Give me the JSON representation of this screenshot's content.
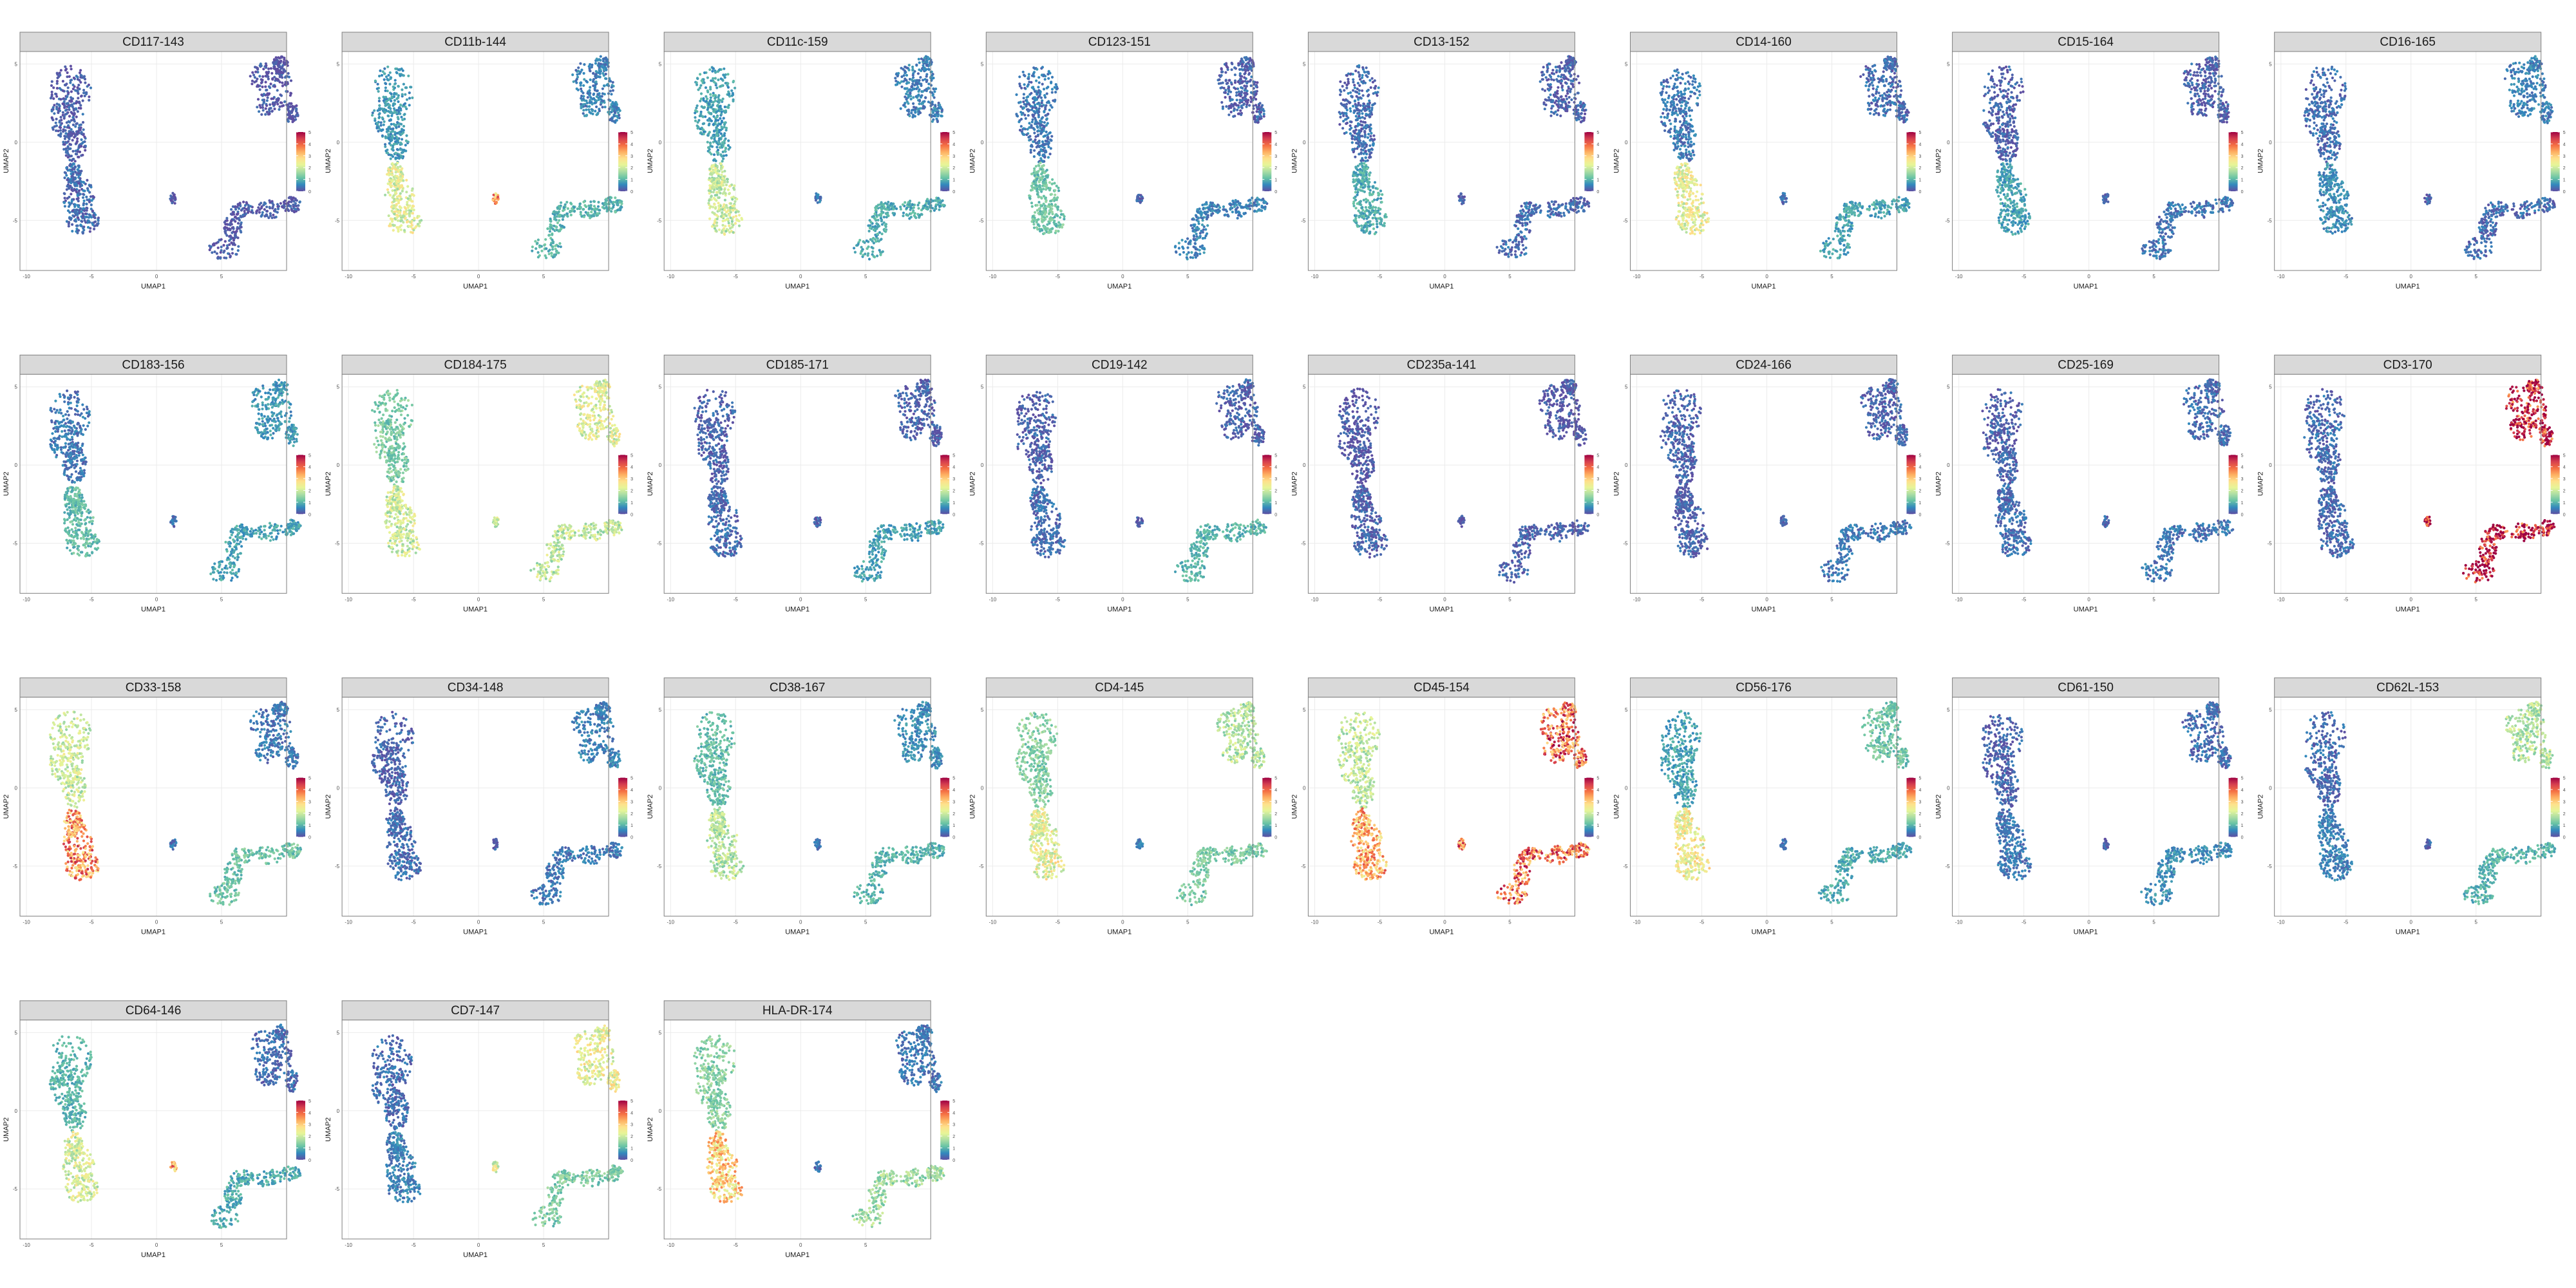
{
  "chart_data": {
    "type": "scatter",
    "title": "",
    "facet_grid": {
      "rows": 4,
      "cols": 8
    },
    "xlabel": "UMAP1",
    "ylabel": "UMAP2",
    "x_ticks": [
      -10,
      -5,
      0,
      5
    ],
    "y_ticks": [
      5,
      0,
      -5
    ],
    "xlim": [
      -10.5,
      10
    ],
    "ylim": [
      -8.2,
      5.8
    ],
    "grid": true,
    "legend_position": "right",
    "color_scale": {
      "name": "Spectral",
      "ticks": [
        0,
        1,
        2,
        3,
        4,
        5
      ],
      "colors": [
        "#5e4fa2",
        "#3288bd",
        "#66c2a5",
        "#abdda4",
        "#e6f598",
        "#fee08b",
        "#fdae61",
        "#f46d43",
        "#d53e4f",
        "#9e0142"
      ]
    },
    "clusters": {
      "myeloid_top": [
        -6.5,
        3.2
      ],
      "myeloid_bottom": [
        -6.0,
        -4.0
      ],
      "nk_cluster": [
        8.2,
        3.6
      ],
      "t_cluster": [
        7.0,
        -4.6
      ],
      "b_island": [
        1.3,
        -3.5
      ]
    },
    "panels": [
      {
        "marker": "CD117-143",
        "expression": {
          "myeloid_top": 0.15,
          "myeloid_bottom": 0.3,
          "nk_cluster": 0.1,
          "t_cluster": 0.1,
          "b_island": 0.1
        }
      },
      {
        "marker": "CD11b-144",
        "expression": {
          "myeloid_top": 0.7,
          "myeloid_bottom": 2.2,
          "nk_cluster": 0.5,
          "t_cluster": 1.0,
          "b_island": 3.4
        }
      },
      {
        "marker": "CD11c-159",
        "expression": {
          "myeloid_top": 0.8,
          "myeloid_bottom": 2.0,
          "nk_cluster": 0.5,
          "t_cluster": 0.9,
          "b_island": 0.4
        }
      },
      {
        "marker": "CD123-151",
        "expression": {
          "myeloid_top": 0.4,
          "myeloid_bottom": 1.2,
          "nk_cluster": 0.2,
          "t_cluster": 0.5,
          "b_island": 0.2
        }
      },
      {
        "marker": "CD13-152",
        "expression": {
          "myeloid_top": 0.3,
          "myeloid_bottom": 0.9,
          "nk_cluster": 0.2,
          "t_cluster": 0.3,
          "b_island": 0.2
        }
      },
      {
        "marker": "CD14-160",
        "expression": {
          "myeloid_top": 0.4,
          "myeloid_bottom": 2.3,
          "nk_cluster": 0.3,
          "t_cluster": 0.8,
          "b_island": 0.3
        }
      },
      {
        "marker": "CD15-164",
        "expression": {
          "myeloid_top": 0.2,
          "myeloid_bottom": 0.8,
          "nk_cluster": 0.2,
          "t_cluster": 0.4,
          "b_island": 0.2
        }
      },
      {
        "marker": "CD16-165",
        "expression": {
          "myeloid_top": 0.3,
          "myeloid_bottom": 0.6,
          "nk_cluster": 0.5,
          "t_cluster": 0.3,
          "b_island": 0.2
        }
      },
      {
        "marker": "CD183-156",
        "expression": {
          "myeloid_top": 0.4,
          "myeloid_bottom": 1.1,
          "nk_cluster": 0.7,
          "t_cluster": 0.8,
          "b_island": 0.3
        }
      },
      {
        "marker": "CD184-175",
        "expression": {
          "myeloid_top": 1.3,
          "myeloid_bottom": 2.0,
          "nk_cluster": 2.2,
          "t_cluster": 1.9,
          "b_island": 2.0
        }
      },
      {
        "marker": "CD185-171",
        "expression": {
          "myeloid_top": 0.2,
          "myeloid_bottom": 0.3,
          "nk_cluster": 0.2,
          "t_cluster": 0.8,
          "b_island": 0.2
        }
      },
      {
        "marker": "CD19-142",
        "expression": {
          "myeloid_top": 0.2,
          "myeloid_bottom": 0.3,
          "nk_cluster": 0.2,
          "t_cluster": 1.0,
          "b_island": 0.2
        }
      },
      {
        "marker": "CD235a-141",
        "expression": {
          "myeloid_top": 0.1,
          "myeloid_bottom": 0.2,
          "nk_cluster": 0.1,
          "t_cluster": 0.2,
          "b_island": 0.1
        }
      },
      {
        "marker": "CD24-166",
        "expression": {
          "myeloid_top": 0.2,
          "myeloid_bottom": 0.2,
          "nk_cluster": 0.2,
          "t_cluster": 0.4,
          "b_island": 0.2
        }
      },
      {
        "marker": "CD25-169",
        "expression": {
          "myeloid_top": 0.2,
          "myeloid_bottom": 0.3,
          "nk_cluster": 0.3,
          "t_cluster": 0.4,
          "b_island": 0.2
        }
      },
      {
        "marker": "CD3-170",
        "expression": {
          "myeloid_top": 0.3,
          "myeloid_bottom": 0.3,
          "nk_cluster": 4.6,
          "t_cluster": 4.9,
          "b_island": 4.8
        }
      },
      {
        "marker": "CD33-158",
        "expression": {
          "myeloid_top": 2.0,
          "myeloid_bottom": 3.6,
          "nk_cluster": 0.4,
          "t_cluster": 1.2,
          "b_island": 0.3
        }
      },
      {
        "marker": "CD34-148",
        "expression": {
          "myeloid_top": 0.2,
          "myeloid_bottom": 0.3,
          "nk_cluster": 0.5,
          "t_cluster": 0.4,
          "b_island": 0.2
        }
      },
      {
        "marker": "CD38-167",
        "expression": {
          "myeloid_top": 1.1,
          "myeloid_bottom": 1.8,
          "nk_cluster": 0.6,
          "t_cluster": 1.0,
          "b_island": 0.4
        }
      },
      {
        "marker": "CD4-145",
        "expression": {
          "myeloid_top": 1.4,
          "myeloid_bottom": 2.3,
          "nk_cluster": 1.8,
          "t_cluster": 1.3,
          "b_island": 0.5
        }
      },
      {
        "marker": "CD45-154",
        "expression": {
          "myeloid_top": 1.9,
          "myeloid_bottom": 3.3,
          "nk_cluster": 3.9,
          "t_cluster": 3.8,
          "b_island": 3.8
        }
      },
      {
        "marker": "CD56-176",
        "expression": {
          "myeloid_top": 0.8,
          "myeloid_bottom": 2.4,
          "nk_cluster": 1.2,
          "t_cluster": 0.9,
          "b_island": 0.3
        }
      },
      {
        "marker": "CD61-150",
        "expression": {
          "myeloid_top": 0.2,
          "myeloid_bottom": 0.4,
          "nk_cluster": 0.3,
          "t_cluster": 0.6,
          "b_island": 0.2
        }
      },
      {
        "marker": "CD62L-153",
        "expression": {
          "myeloid_top": 0.3,
          "myeloid_bottom": 0.5,
          "nk_cluster": 1.8,
          "t_cluster": 1.0,
          "b_island": 0.2
        }
      },
      {
        "marker": "CD64-146",
        "expression": {
          "myeloid_top": 1.0,
          "myeloid_bottom": 2.1,
          "nk_cluster": 0.3,
          "t_cluster": 0.9,
          "b_island": 3.4
        }
      },
      {
        "marker": "CD7-147",
        "expression": {
          "myeloid_top": 0.3,
          "myeloid_bottom": 0.5,
          "nk_cluster": 2.3,
          "t_cluster": 1.3,
          "b_island": 2.2
        }
      },
      {
        "marker": "HLA-DR-174",
        "expression": {
          "myeloid_top": 1.4,
          "myeloid_bottom": 2.9,
          "nk_cluster": 0.4,
          "t_cluster": 1.6,
          "b_island": 0.3
        }
      }
    ]
  }
}
